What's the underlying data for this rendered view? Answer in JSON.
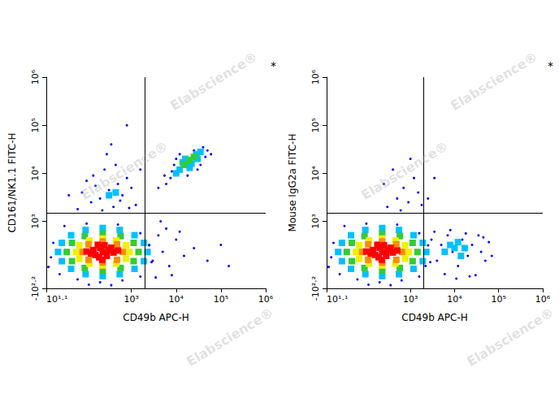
{
  "chart_data": [
    {
      "type": "scatter",
      "x_label": "CD49b APC-H",
      "y_label": "CD161/NK1.1 FITC-H",
      "annotation": "*",
      "watermark": "Elabscience®",
      "log": true,
      "grid": false,
      "xlim": [
        12.589,
        1000000
      ],
      "ylim": [
        -158.49,
        1000000
      ],
      "xticks": [
        {
          "value": 12.589,
          "label": "10¹·¹"
        },
        {
          "value": 1000,
          "label": "10³"
        },
        {
          "value": 10000,
          "label": "10⁴"
        },
        {
          "value": 100000,
          "label": "10⁵"
        },
        {
          "value": 1000000,
          "label": "10⁶"
        }
      ],
      "yticks": [
        {
          "value": -158.49,
          "label": "-10²·²"
        },
        {
          "value": 1000,
          "label": "10³"
        },
        {
          "value": 10000,
          "label": "10⁴"
        },
        {
          "value": 100000,
          "label": "10⁵"
        },
        {
          "value": 1000000,
          "label": "10⁶"
        }
      ],
      "gates": {
        "x": 2000,
        "y": 1500
      },
      "series": [
        {
          "color": "#0000ff",
          "marker": "dot",
          "x": [
            16,
            18,
            32,
            100,
            501,
            1585,
            2512,
            2818,
            1585,
            631,
            200,
            63,
            25,
            14,
            355,
            112,
            200,
            316,
            501,
            126,
            794,
            251,
            398,
            158,
            631,
            1259,
            63,
            100,
            447,
            1000,
            282,
            224,
            562,
            40,
            1585,
            355,
            794,
            141,
            891,
            79,
            6000,
            8000,
            7500,
            9000,
            12000,
            40000,
            50000,
            45000,
            25000,
            5500,
            60000,
            35000,
            10000,
            4000,
            30000,
            18000,
            2500,
            3000,
            4000,
            5000,
            7000,
            10000,
            3500,
            15000,
            6000,
            25000,
            50000,
            100000,
            150000,
            8000,
            4500,
            12000
          ],
          "values": [
            135,
            336,
            792,
            891,
            850,
            555,
            294,
            86,
            -42,
            -77,
            -95,
            -68,
            -21,
            42,
            -124,
            -119,
            3000,
            4500,
            6000,
            2500,
            8000,
            12000,
            2000,
            5500,
            3500,
            2200,
            1800,
            7000,
            15000,
            5000,
            25000,
            1700,
            2700,
            3500,
            12000,
            40000,
            100000,
            9000,
            1900,
            4000,
            6000,
            11000,
            8000,
            15000,
            25000,
            35000,
            30000,
            22000,
            30000,
            9000,
            25000,
            15000,
            20000,
            5000,
            12000,
            9000,
            300,
            100,
            500,
            200,
            50,
            400,
            -50,
            150,
            700,
            250,
            100,
            300,
            50,
            -30,
            1000,
            600
          ]
        },
        {
          "color": "#00c0ff",
          "marker": "square",
          "x": [
            2291,
            1905,
            1175,
            550,
            229,
            95,
            45,
            28,
            23,
            28,
            45,
            95,
            229,
            550,
            1175,
            1905,
            316,
            447,
            12000,
            18000,
            22000,
            16000,
            28000,
            30000,
            10000,
            20000,
            14000,
            35000
          ],
          "values": [
            197,
            336,
            502,
            653,
            720,
            653,
            502,
            336,
            197,
            95,
            25,
            -21,
            -38,
            -21,
            25,
            95,
            3500,
            4000,
            12000,
            17000,
            16000,
            20000,
            25000,
            20000,
            10000,
            13000,
            17000,
            28000
          ]
        },
        {
          "color": "#33cc33",
          "marker": "square",
          "x": [
            1445,
            1122,
            575,
            229,
            91,
            47,
            36,
            47,
            91,
            229,
            575,
            1122,
            15000,
            20000,
            25000
          ],
          "values": [
            197,
            336,
            479,
            540,
            479,
            336,
            197,
            95,
            33,
            12,
            33,
            95,
            15000,
            19000,
            22000
          ]
        },
        {
          "color": "#f0f000",
          "marker": "square",
          "x": [
            912,
            759,
            457,
            229,
            115,
            69,
            58,
            69,
            115,
            229,
            457,
            759
          ],
          "values": [
            197,
            294,
            382,
            423,
            382,
            294,
            197,
            119,
            72,
            55,
            72,
            119
          ]
        },
        {
          "color": "#ff8c00",
          "marker": "square",
          "x": [
            646,
            479,
            229,
            110,
            81,
            110,
            229,
            479
          ],
          "values": [
            197,
            311,
            363,
            311,
            197,
            109,
            81,
            109
          ]
        },
        {
          "color": "#ff0000",
          "marker": "square",
          "x": [
            229,
            158,
            316,
            200,
            282,
            141,
            398,
            126,
            251,
            191,
            355,
            100,
            501,
            224,
            178
          ],
          "values": [
            197,
            161,
            222,
            256,
            151,
            222,
            190,
            178,
            294,
            135,
            256,
            203,
            216,
            109,
            302
          ]
        }
      ]
    },
    {
      "type": "scatter",
      "x_label": "CD49b APC-H",
      "y_label": "Mouse IgG2a FITC-H",
      "annotation": "*",
      "watermark": "Elabscience®",
      "log": true,
      "grid": false,
      "xlim": [
        12.589,
        1000000
      ],
      "ylim": [
        -158.49,
        1000000
      ],
      "xticks": [
        {
          "value": 12.589,
          "label": "10¹·¹"
        },
        {
          "value": 1000,
          "label": "10³"
        },
        {
          "value": 10000,
          "label": "10⁴"
        },
        {
          "value": 100000,
          "label": "10⁵"
        },
        {
          "value": 1000000,
          "label": "10⁶"
        }
      ],
      "yticks": [
        {
          "value": -158.49,
          "label": "-10²·²"
        },
        {
          "value": 1000,
          "label": "10³"
        },
        {
          "value": 10000,
          "label": "10⁴"
        },
        {
          "value": 100000,
          "label": "10⁵"
        },
        {
          "value": 1000000,
          "label": "10⁶"
        }
      ],
      "gates": {
        "x": 2000,
        "y": 1500
      },
      "series": [
        {
          "color": "#0000ff",
          "marker": "dot",
          "x": [
            16,
            18,
            32,
            100,
            501,
            1585,
            2512,
            2818,
            1585,
            631,
            200,
            63,
            25,
            14,
            355,
            112,
            2500,
            3000,
            4000,
            5000,
            6000,
            7000,
            9000,
            12000,
            15000,
            20000,
            25000,
            30000,
            40000,
            50000,
            60000,
            3500,
            8000,
            18000,
            35000,
            2200,
            11000,
            22000,
            45000,
            70000,
            300,
            500,
            700,
            900,
            1200,
            1500,
            400,
            1800,
            600,
            1000,
            250,
            2500,
            3500
          ],
          "values": [
            135,
            336,
            792,
            891,
            850,
            555,
            294,
            86,
            -42,
            -77,
            -95,
            -68,
            -21,
            42,
            -124,
            -119,
            200,
            400,
            100,
            300,
            -20,
            500,
            200,
            50,
            400,
            150,
            300,
            -30,
            200,
            100,
            350,
            600,
            650,
            550,
            500,
            50,
            -60,
            -40,
            450,
            150,
            2000,
            3000,
            5000,
            2500,
            8000,
            4000,
            12000,
            2200,
            1700,
            20000,
            6000,
            3000,
            8000
          ]
        },
        {
          "color": "#00c0ff",
          "marker": "square",
          "x": [
            2291,
            1905,
            1175,
            550,
            229,
            95,
            45,
            28,
            23,
            28,
            45,
            95,
            229,
            550,
            1175,
            1905,
            10000,
            14000,
            8000,
            17000,
            12000,
            6000
          ],
          "values": [
            197,
            336,
            502,
            653,
            720,
            653,
            502,
            336,
            197,
            95,
            25,
            -21,
            -38,
            -21,
            25,
            95,
            250,
            150,
            300,
            250,
            350,
            200
          ]
        },
        {
          "color": "#33cc33",
          "marker": "square",
          "x": [
            1445,
            1122,
            575,
            229,
            91,
            47,
            36,
            47,
            91,
            229,
            575,
            1122
          ],
          "values": [
            197,
            336,
            479,
            540,
            479,
            336,
            197,
            95,
            33,
            12,
            33,
            95
          ]
        },
        {
          "color": "#f0f000",
          "marker": "square",
          "x": [
            912,
            759,
            457,
            229,
            115,
            69,
            58,
            69,
            115,
            229,
            457,
            759
          ],
          "values": [
            197,
            294,
            382,
            423,
            382,
            294,
            197,
            119,
            72,
            55,
            72,
            119
          ]
        },
        {
          "color": "#ff8c00",
          "marker": "square",
          "x": [
            646,
            479,
            229,
            110,
            81,
            110,
            229,
            479
          ],
          "values": [
            197,
            311,
            363,
            311,
            197,
            109,
            81,
            109
          ]
        },
        {
          "color": "#ff0000",
          "marker": "square",
          "x": [
            229,
            158,
            316,
            200,
            282,
            141,
            398,
            126,
            251,
            191,
            355,
            100,
            501,
            224,
            178
          ],
          "values": [
            197,
            161,
            222,
            256,
            151,
            222,
            190,
            178,
            294,
            135,
            256,
            203,
            216,
            109,
            302
          ]
        }
      ]
    }
  ]
}
